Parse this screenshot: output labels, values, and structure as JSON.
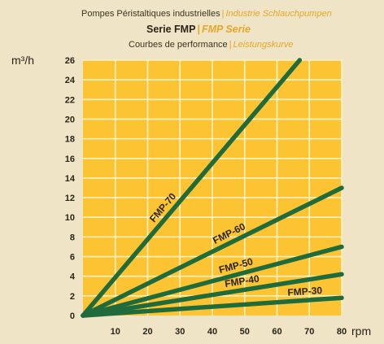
{
  "header": {
    "line1_fr": "Pompes Péristaltiques industrielles",
    "line1_de": "Industrie Schlauchpumpen",
    "line2_fr": "Serie FMP",
    "line2_de": "FMP Serie",
    "line3_fr": "Courbes de performance",
    "line3_de": "Leistungskurve",
    "separator": "|"
  },
  "colors": {
    "background": "#efe4c6",
    "plot_fill": "#fcc433",
    "grid": "#fff2c4",
    "line": "#1f6b3c",
    "accent": "#e4a72a",
    "text": "#2a2418"
  },
  "chart_data": {
    "type": "line",
    "xlabel": "rpm",
    "ylabel": "m³/h",
    "xlim": [
      0,
      80
    ],
    "ylim": [
      0,
      26
    ],
    "x_ticks": [
      10,
      20,
      30,
      40,
      50,
      60,
      70,
      80
    ],
    "y_ticks": [
      0,
      2,
      4,
      6,
      8,
      10,
      12,
      14,
      16,
      18,
      20,
      22,
      24,
      26
    ],
    "grid": true,
    "series": [
      {
        "name": "FMP-70",
        "points": [
          [
            0,
            0
          ],
          [
            67,
            26
          ]
        ]
      },
      {
        "name": "FMP-60",
        "points": [
          [
            0,
            0
          ],
          [
            80,
            13
          ]
        ]
      },
      {
        "name": "FMP-50",
        "points": [
          [
            0,
            0
          ],
          [
            80,
            7
          ]
        ]
      },
      {
        "name": "FMP-40",
        "points": [
          [
            0,
            0
          ],
          [
            80,
            4.2
          ]
        ]
      },
      {
        "name": "FMP-30",
        "points": [
          [
            0,
            0
          ],
          [
            80,
            1.8
          ]
        ]
      }
    ]
  }
}
